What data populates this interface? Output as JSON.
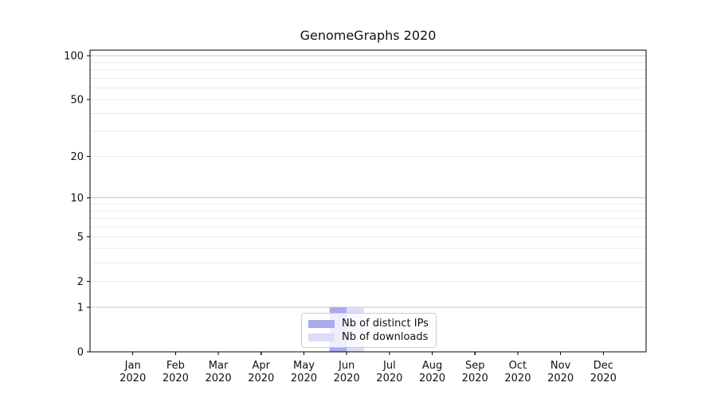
{
  "chart_data": {
    "type": "bar",
    "title": "GenomeGraphs 2020",
    "x_year": "2020",
    "categories": [
      "Jan",
      "Feb",
      "Mar",
      "Apr",
      "May",
      "Jun",
      "Jul",
      "Aug",
      "Sep",
      "Oct",
      "Nov",
      "Dec"
    ],
    "series": [
      {
        "name": "Nb of distinct IPs",
        "color": "#AAAAEE",
        "values": [
          0,
          0,
          0,
          0,
          0,
          1,
          0,
          0,
          0,
          0,
          0,
          0
        ]
      },
      {
        "name": "Nb of downloads",
        "color": "#DDDDF7",
        "values": [
          0,
          0,
          0,
          0,
          0,
          1,
          0,
          0,
          0,
          0,
          0,
          0
        ]
      }
    ],
    "y_scale": "log1p",
    "y_ticks": [
      0,
      1,
      2,
      5,
      10,
      20,
      50,
      100
    ],
    "y_minor_gridlines": [
      2,
      3,
      4,
      5,
      6,
      7,
      8,
      9,
      20,
      30,
      40,
      50,
      60,
      70,
      80,
      90
    ],
    "y_major_gridlines": [
      1,
      10,
      100
    ],
    "y_axis_max": 109,
    "ylim": [
      0,
      109
    ],
    "xlabel": "",
    "ylabel": "",
    "grid": "horizontal",
    "legend_position": "bottom-center",
    "colors": {
      "major_grid": "#c4c4c4",
      "minor_grid": "#eaeaea",
      "spine": "#000000",
      "text": "#111111",
      "background": "#ffffff"
    }
  }
}
